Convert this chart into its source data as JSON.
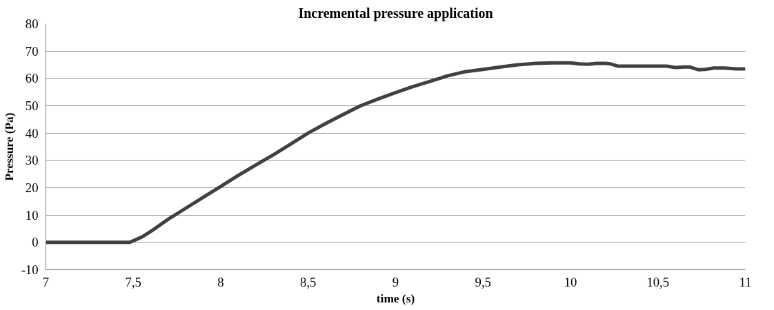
{
  "chart_data": {
    "type": "line",
    "title": "Incremental pressure application",
    "xlabel": "time (s)",
    "ylabel": "Pressure (Pa)",
    "x": [
      7,
      7.2,
      7.4,
      7.48,
      7.55,
      7.6,
      7.7,
      7.8,
      7.9,
      8,
      8.1,
      8.2,
      8.3,
      8.4,
      8.5,
      8.6,
      8.7,
      8.8,
      8.9,
      9,
      9.1,
      9.2,
      9.3,
      9.4,
      9.5,
      9.6,
      9.7,
      9.8,
      9.9,
      10,
      10.05,
      10.1,
      10.15,
      10.2,
      10.23,
      10.27,
      10.35,
      10.45,
      10.55,
      10.6,
      10.65,
      10.68,
      10.73,
      10.77,
      10.82,
      10.88,
      10.95,
      11
    ],
    "series": [
      {
        "color": "#404040",
        "values": [
          0,
          0,
          0,
          0,
          2,
          4,
          8.5,
          12.5,
          16.5,
          20.5,
          24.5,
          28.3,
          32,
          36,
          40,
          43.5,
          46.8,
          50,
          52.5,
          54.8,
          57,
          59,
          61,
          62.5,
          63.3,
          64.2,
          65,
          65.5,
          65.7,
          65.7,
          65.3,
          65.2,
          65.5,
          65.5,
          65.3,
          64.5,
          64.5,
          64.5,
          64.5,
          64,
          64.2,
          64.2,
          63.2,
          63.3,
          63.8,
          63.8,
          63.5,
          63.5
        ]
      }
    ],
    "xlim": [
      7,
      11
    ],
    "xticks": [
      7,
      {
        "value": 7.5,
        "label": "7,5"
      },
      8,
      {
        "value": 8.5,
        "label": "8,5"
      },
      9,
      {
        "value": 9.5,
        "label": "9,5"
      },
      10,
      {
        "value": 10.5,
        "label": "10,5"
      },
      11
    ],
    "ylim": [
      -10,
      80
    ],
    "yticks": [
      -10,
      0,
      10,
      20,
      30,
      40,
      50,
      60,
      70,
      80
    ],
    "grid": "y",
    "marker": "none",
    "line_style": "solid"
  }
}
